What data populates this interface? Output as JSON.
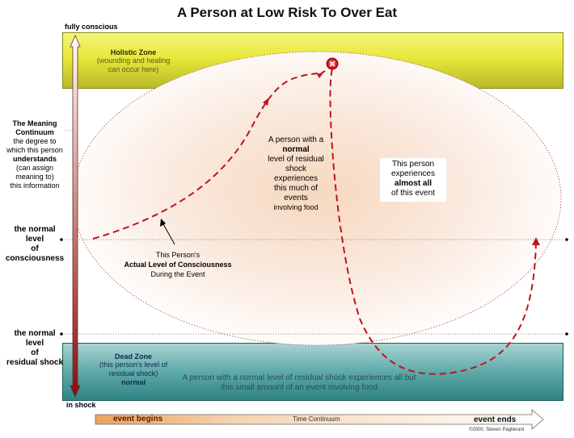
{
  "title": "A Person at Low Risk To Over Eat",
  "axis": {
    "top_label": "fully conscious",
    "bottom_label": "in shock"
  },
  "holistic_zone": {
    "title": "Holistic Zone",
    "line1": "(wounding and healing",
    "line2": "can occur here)"
  },
  "dead_zone": {
    "title": "Dead Zone",
    "line1": "(this person's level of",
    "line2": "residual shock)",
    "line3": "normal"
  },
  "dead_zone_note": {
    "line1": "A person with a  normal level of residual shock experiences all but",
    "line2": "this small amount of an event involving food"
  },
  "meaning_continuum": {
    "title1": "The Meaning",
    "title2": "Continuum",
    "line1": "the degree to",
    "line2": "which this person",
    "line3": "understands",
    "line4": "(can assign",
    "line5": "meaning to)",
    "line6": "this information"
  },
  "normal_consciousness": {
    "line1": "the normal",
    "line2": "level",
    "line3": "of",
    "line4": "consciousness"
  },
  "normal_shock": {
    "line1": "the normal",
    "line2": "level",
    "line3": "of",
    "line4": "residual shock"
  },
  "middle_note": {
    "line1": "A person with a",
    "line2": "normal",
    "line3": "level of residual",
    "line4": "shock",
    "line5": "experiences",
    "line6": "this much of",
    "line7": "events",
    "line8": "involving food"
  },
  "right_note": {
    "line1": "This person",
    "line2": "experiences",
    "line3": "almost all",
    "line4": "of this event"
  },
  "actual_level": {
    "line1": "This Person's",
    "line2": "Actual Level of Consciousness",
    "line3": "During the Event"
  },
  "timeline": {
    "start": "event begins",
    "middle": "Time Continuum",
    "end": "event ends"
  },
  "copyright": "©2000, Steven Paglierani",
  "colors": {
    "dashed_path": "#c0141b",
    "holistic": "#e8e83a",
    "dead_zone": "#3e8f8f"
  }
}
